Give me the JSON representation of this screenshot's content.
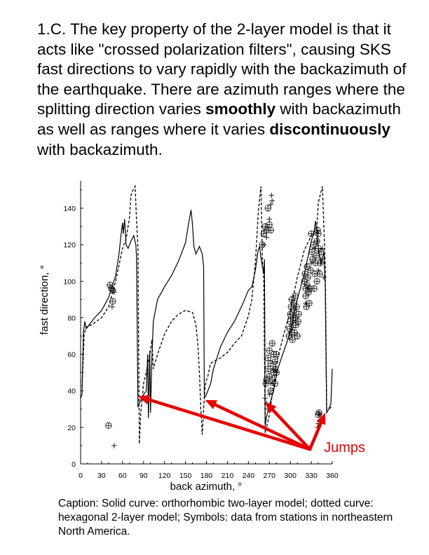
{
  "heading": {
    "part1": "1.C. The key property of the 2-layer model is that it acts like \"crossed polarization filters\", causing SKS fast directions to vary rapidly with the backazimuth of the earthquake.  There are azimuth ranges where the splitting direction varies ",
    "emph1": "smoothly",
    "part2": " with backazimuth as well as ranges where it varies ",
    "emph2": "discontinuously",
    "part3": " with backazimuth."
  },
  "caption": "Caption: Solid curve: orthorhombic two-layer model; dotted curve: hexagonal 2-layer model; Symbols: data from stations in northeastern North America.",
  "colors": {
    "annotation": "#e60000",
    "ink": "#000000"
  },
  "chart_data": {
    "type": "line",
    "xlabel": "back azimuth, °",
    "ylabel": "fast direction, °",
    "xlim": [
      0,
      360
    ],
    "ylim": [
      0,
      155
    ],
    "x_ticks": [
      0,
      30,
      60,
      90,
      120,
      150,
      180,
      210,
      240,
      270,
      300,
      330,
      360
    ],
    "y_ticks": [
      0,
      20,
      40,
      60,
      80,
      100,
      120,
      140
    ],
    "grid": false,
    "legend": "none",
    "series": [
      {
        "style": "solid",
        "points": [
          [
            0,
            36
          ],
          [
            2,
            38
          ],
          [
            4,
            72
          ],
          [
            6,
            78
          ],
          [
            8,
            74
          ],
          [
            12,
            76
          ],
          [
            20,
            80
          ],
          [
            30,
            84
          ],
          [
            40,
            91
          ],
          [
            50,
            103
          ],
          [
            55,
            115
          ],
          [
            58,
            126
          ],
          [
            60,
            132
          ],
          [
            61,
            126
          ],
          [
            63,
            134
          ],
          [
            65,
            120
          ],
          [
            68,
            118
          ],
          [
            72,
            122
          ],
          [
            76,
            125
          ],
          [
            79,
            120
          ],
          [
            80,
            113
          ],
          [
            82,
            31
          ],
          [
            86,
            35
          ],
          [
            90,
            38
          ],
          [
            94,
            40
          ],
          [
            96,
            60
          ],
          [
            97,
            25
          ],
          [
            99,
            62
          ],
          [
            100,
            28
          ],
          [
            102,
            58
          ],
          [
            104,
            78
          ],
          [
            110,
            90
          ],
          [
            120,
            97
          ],
          [
            130,
            103
          ],
          [
            140,
            111
          ],
          [
            150,
            121
          ],
          [
            155,
            133
          ],
          [
            158,
            139
          ],
          [
            160,
            131
          ],
          [
            162,
            119
          ],
          [
            165,
            115
          ],
          [
            170,
            119
          ],
          [
            174,
            115
          ],
          [
            176,
            108
          ],
          [
            177,
            36
          ],
          [
            180,
            38
          ],
          [
            183,
            41
          ],
          [
            186,
            44
          ],
          [
            190,
            52
          ],
          [
            200,
            64
          ],
          [
            210,
            72
          ],
          [
            220,
            78
          ],
          [
            230,
            86
          ],
          [
            240,
            95
          ],
          [
            245,
            97
          ],
          [
            250,
            106
          ],
          [
            254,
            117
          ],
          [
            256,
            119
          ],
          [
            258,
            113
          ],
          [
            260,
            108
          ],
          [
            262,
            104
          ],
          [
            263,
            112
          ],
          [
            264,
            21
          ],
          [
            266,
            26
          ],
          [
            270,
            32
          ],
          [
            276,
            40
          ],
          [
            282,
            52
          ],
          [
            290,
            61
          ],
          [
            300,
            72
          ],
          [
            310,
            90
          ],
          [
            320,
            104
          ],
          [
            325,
            113
          ],
          [
            330,
            122
          ],
          [
            334,
            127
          ],
          [
            336,
            133
          ],
          [
            338,
            127
          ],
          [
            340,
            118
          ],
          [
            344,
            109
          ],
          [
            348,
            116
          ],
          [
            350,
            98
          ],
          [
            352,
            28
          ],
          [
            355,
            30
          ],
          [
            358,
            33
          ],
          [
            360,
            52
          ]
        ]
      },
      {
        "style": "dashed",
        "points": [
          [
            2,
            42
          ],
          [
            4,
            60
          ],
          [
            5,
            71
          ],
          [
            8,
            75
          ],
          [
            15,
            76
          ],
          [
            30,
            80
          ],
          [
            40,
            86
          ],
          [
            50,
            100
          ],
          [
            60,
            118
          ],
          [
            65,
            123
          ],
          [
            70,
            135
          ],
          [
            72,
            147
          ],
          [
            75,
            150
          ],
          [
            78,
            152
          ],
          [
            80,
            133
          ],
          [
            82,
            118
          ],
          [
            84,
            11
          ],
          [
            86,
            28
          ],
          [
            90,
            44
          ],
          [
            95,
            52
          ],
          [
            98,
            58
          ],
          [
            100,
            62
          ],
          [
            102,
            68
          ],
          [
            104,
            52
          ],
          [
            110,
            60
          ],
          [
            120,
            71
          ],
          [
            130,
            78
          ],
          [
            140,
            82
          ],
          [
            150,
            84
          ],
          [
            160,
            83
          ],
          [
            165,
            76
          ],
          [
            168,
            64
          ],
          [
            170,
            50
          ],
          [
            172,
            30
          ],
          [
            174,
            16
          ],
          [
            176,
            30
          ],
          [
            178,
            42
          ],
          [
            180,
            46
          ],
          [
            182,
            48
          ],
          [
            186,
            55
          ],
          [
            190,
            56
          ],
          [
            200,
            58
          ],
          [
            210,
            61
          ],
          [
            220,
            66
          ],
          [
            230,
            70
          ],
          [
            240,
            81
          ],
          [
            245,
            90
          ],
          [
            250,
            110
          ],
          [
            252,
            123
          ],
          [
            254,
            137
          ],
          [
            256,
            145
          ],
          [
            258,
            152
          ],
          [
            259,
            130
          ],
          [
            260,
            112
          ],
          [
            262,
            100
          ],
          [
            264,
            17
          ],
          [
            266,
            20
          ],
          [
            270,
            27
          ],
          [
            275,
            40
          ],
          [
            280,
            55
          ],
          [
            290,
            70
          ],
          [
            300,
            84
          ],
          [
            310,
            102
          ],
          [
            320,
            117
          ],
          [
            330,
            125
          ],
          [
            338,
            130
          ],
          [
            340,
            143
          ],
          [
            344,
            149
          ],
          [
            346,
            152
          ],
          [
            348,
            130
          ],
          [
            350,
            108
          ],
          [
            352,
            30
          ],
          [
            355,
            30
          ],
          [
            358,
            31
          ],
          [
            360,
            30
          ]
        ]
      }
    ],
    "data_circles": [
      [
        40,
        21
      ],
      [
        42,
        98
      ],
      [
        44,
        96
      ],
      [
        46,
        89
      ],
      [
        46,
        95
      ],
      [
        260,
        120
      ],
      [
        262,
        126
      ],
      [
        264,
        130
      ],
      [
        266,
        128
      ],
      [
        268,
        140
      ],
      [
        270,
        131
      ],
      [
        272,
        128
      ],
      [
        265,
        44
      ],
      [
        266,
        46
      ],
      [
        268,
        52
      ],
      [
        268,
        58
      ],
      [
        270,
        48
      ],
      [
        270,
        62
      ],
      [
        272,
        40
      ],
      [
        272,
        55
      ],
      [
        274,
        46
      ],
      [
        274,
        66
      ],
      [
        276,
        50
      ],
      [
        276,
        60
      ],
      [
        278,
        44
      ],
      [
        278,
        52
      ],
      [
        278,
        56
      ],
      [
        280,
        50
      ],
      [
        280,
        60
      ],
      [
        298,
        70
      ],
      [
        299,
        74
      ],
      [
        300,
        78
      ],
      [
        300,
        82
      ],
      [
        301,
        86
      ],
      [
        302,
        90
      ],
      [
        302,
        72
      ],
      [
        303,
        68
      ],
      [
        304,
        80
      ],
      [
        304,
        76
      ],
      [
        305,
        84
      ],
      [
        305,
        88
      ],
      [
        306,
        72
      ],
      [
        307,
        80
      ],
      [
        307,
        92
      ],
      [
        308,
        76
      ],
      [
        309,
        86
      ],
      [
        310,
        70
      ],
      [
        311,
        78
      ],
      [
        312,
        82
      ],
      [
        320,
        100
      ],
      [
        321,
        104
      ],
      [
        322,
        92
      ],
      [
        322,
        96
      ],
      [
        323,
        86
      ],
      [
        324,
        98
      ],
      [
        324,
        108
      ],
      [
        325,
        102
      ],
      [
        326,
        94
      ],
      [
        327,
        88
      ],
      [
        328,
        96
      ],
      [
        329,
        106
      ],
      [
        330,
        126
      ],
      [
        331,
        116
      ],
      [
        332,
        112
      ],
      [
        333,
        120
      ],
      [
        334,
        96
      ],
      [
        335,
        104
      ],
      [
        336,
        110
      ],
      [
        337,
        114
      ],
      [
        338,
        100
      ],
      [
        338,
        122
      ],
      [
        339,
        128
      ],
      [
        340,
        118
      ],
      [
        340,
        126
      ],
      [
        340,
        27
      ],
      [
        341,
        28
      ],
      [
        342,
        104
      ],
      [
        343,
        110
      ],
      [
        344,
        116
      ]
    ],
    "data_crosses": [
      [
        45,
        86
      ],
      [
        48,
        94
      ],
      [
        48,
        10
      ],
      [
        262,
        120
      ],
      [
        266,
        124
      ],
      [
        270,
        134
      ],
      [
        272,
        142
      ],
      [
        273,
        147
      ],
      [
        274,
        144
      ],
      [
        264,
        36
      ],
      [
        266,
        33
      ],
      [
        268,
        30
      ],
      [
        270,
        38
      ],
      [
        272,
        44
      ],
      [
        276,
        52
      ],
      [
        322,
        88
      ],
      [
        326,
        96
      ],
      [
        330,
        110
      ],
      [
        335,
        118
      ],
      [
        338,
        122
      ],
      [
        339,
        20
      ],
      [
        340,
        22
      ],
      [
        342,
        27
      ],
      [
        340,
        106
      ],
      [
        344,
        112
      ],
      [
        346,
        118
      ],
      [
        348,
        102
      ]
    ],
    "annotations": [
      {
        "label": "Jumps",
        "origin": [
          328,
          8
        ],
        "targets": [
          [
            82,
            37
          ],
          [
            178,
            35
          ],
          [
            264,
            34
          ],
          [
            350,
            28
          ]
        ]
      }
    ]
  }
}
